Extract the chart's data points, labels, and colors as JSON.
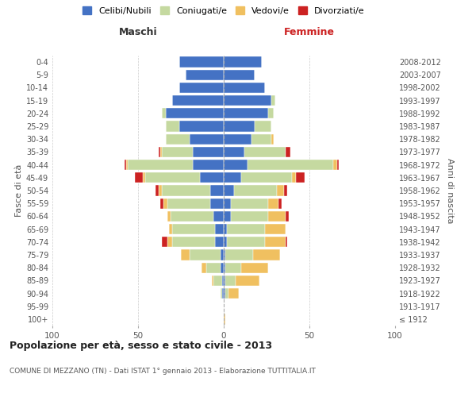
{
  "age_groups": [
    "100+",
    "95-99",
    "90-94",
    "85-89",
    "80-84",
    "75-79",
    "70-74",
    "65-69",
    "60-64",
    "55-59",
    "50-54",
    "45-49",
    "40-44",
    "35-39",
    "30-34",
    "25-29",
    "20-24",
    "15-19",
    "10-14",
    "5-9",
    "0-4"
  ],
  "birth_years": [
    "≤ 1912",
    "1913-1917",
    "1918-1922",
    "1923-1927",
    "1928-1932",
    "1933-1937",
    "1938-1942",
    "1943-1947",
    "1948-1952",
    "1953-1957",
    "1958-1962",
    "1963-1967",
    "1968-1972",
    "1973-1977",
    "1978-1982",
    "1983-1987",
    "1988-1992",
    "1993-1997",
    "1998-2002",
    "2003-2007",
    "2008-2012"
  ],
  "colors": {
    "celibi": "#4472c4",
    "coniugati": "#c5d9a0",
    "vedovi": "#f0c060",
    "divorziati": "#cc2222"
  },
  "male": {
    "celibi": [
      0,
      0,
      1,
      1,
      2,
      2,
      5,
      5,
      6,
      8,
      8,
      14,
      18,
      18,
      20,
      26,
      34,
      30,
      26,
      22,
      26
    ],
    "coniugati": [
      0,
      0,
      1,
      5,
      8,
      18,
      25,
      25,
      25,
      25,
      28,
      32,
      38,
      18,
      14,
      8,
      2,
      0,
      0,
      0,
      0
    ],
    "vedovi": [
      0,
      0,
      0,
      1,
      3,
      5,
      3,
      2,
      2,
      2,
      2,
      1,
      1,
      1,
      0,
      0,
      0,
      0,
      0,
      0,
      0
    ],
    "divorziati": [
      0,
      0,
      0,
      0,
      0,
      0,
      3,
      0,
      0,
      2,
      2,
      5,
      1,
      1,
      0,
      0,
      0,
      0,
      0,
      0,
      0
    ]
  },
  "female": {
    "nubili": [
      0,
      0,
      1,
      1,
      1,
      1,
      2,
      2,
      4,
      4,
      6,
      10,
      14,
      12,
      16,
      18,
      26,
      28,
      24,
      18,
      22
    ],
    "coniugate": [
      0,
      0,
      2,
      6,
      9,
      16,
      22,
      22,
      22,
      22,
      25,
      30,
      50,
      24,
      12,
      10,
      3,
      2,
      0,
      0,
      0
    ],
    "vedove": [
      1,
      0,
      6,
      14,
      16,
      16,
      12,
      12,
      10,
      6,
      4,
      2,
      2,
      0,
      1,
      0,
      0,
      0,
      0,
      0,
      0
    ],
    "divorziate": [
      0,
      0,
      0,
      0,
      0,
      0,
      1,
      0,
      2,
      2,
      2,
      5,
      1,
      3,
      0,
      0,
      0,
      0,
      0,
      0,
      0
    ]
  },
  "title": "Popolazione per età, sesso e stato civile - 2013",
  "subtitle": "COMUNE DI MEZZANO (TN) - Dati ISTAT 1° gennaio 2013 - Elaborazione TUTTITALIA.IT",
  "xlabel_left": "Maschi",
  "xlabel_right": "Femmine",
  "ylabel_left": "Fasce di età",
  "ylabel_right": "Anni di nascita",
  "xlim": 100,
  "legend_labels": [
    "Celibi/Nubili",
    "Coniugati/e",
    "Vedovi/e",
    "Divorziati/e"
  ],
  "background_color": "#ffffff",
  "grid_color": "#cccccc"
}
